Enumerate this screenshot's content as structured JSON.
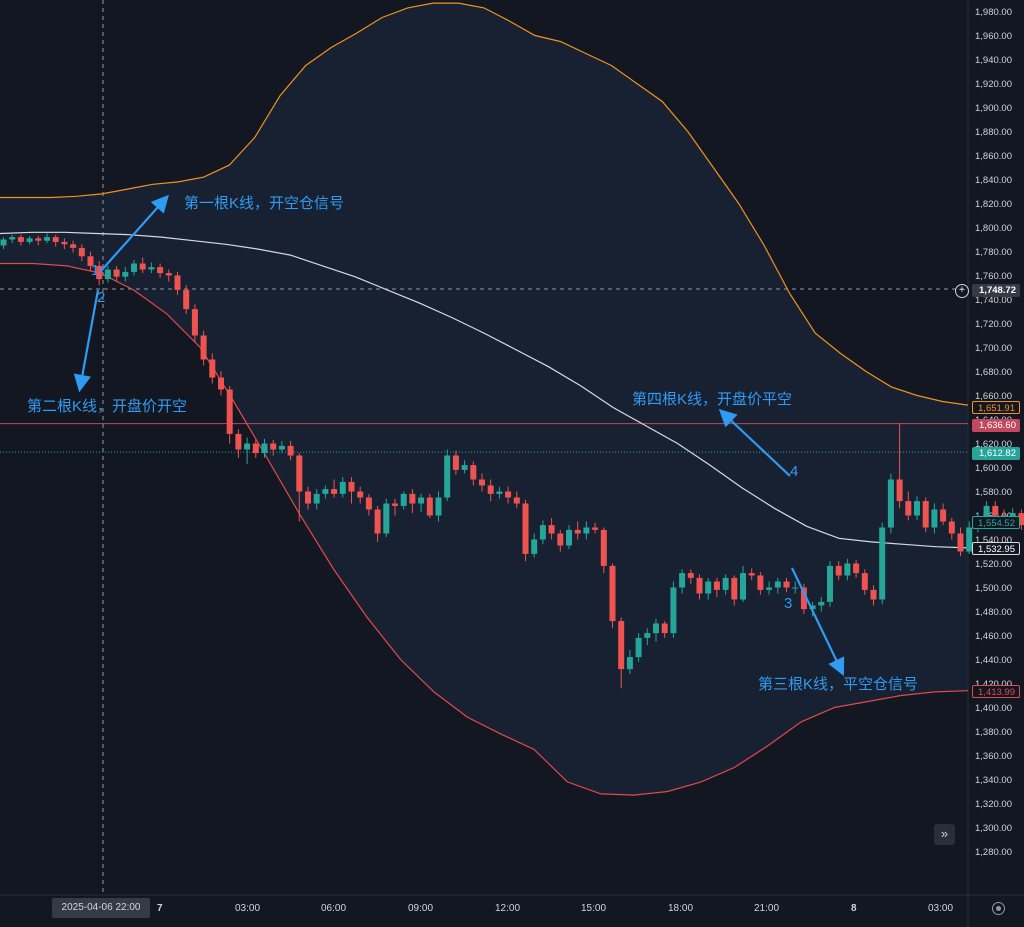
{
  "chart_data": {
    "type": "candlestick",
    "y_axis": {
      "range": [
        1265,
        1995
      ],
      "ticks": [
        "1,280.00",
        "1,300.00",
        "1,320.00",
        "1,340.00",
        "1,360.00",
        "1,380.00",
        "1,400.00",
        "1,420.00",
        "1,440.00",
        "1,460.00",
        "1,480.00",
        "1,500.00",
        "1,520.00",
        "1,540.00",
        "1,560.00",
        "1,580.00",
        "1,600.00",
        "1,620.00",
        "1,640.00",
        "1,660.00",
        "1,680.00",
        "1,700.00",
        "1,720.00",
        "1,740.00",
        "1,760.00",
        "1,780.00",
        "1,800.00",
        "1,820.00",
        "1,840.00",
        "1,860.00",
        "1,880.00",
        "1,900.00",
        "1,920.00",
        "1,940.00",
        "1,960.00",
        "1,980.00"
      ]
    },
    "x_axis": {
      "ticks": [
        "7",
        "03:00",
        "06:00",
        "09:00",
        "12:00",
        "15:00",
        "18:00",
        "21:00",
        "8",
        "03:00"
      ],
      "crosshair_label": "2025-04-06   22:00"
    },
    "price_labels": {
      "crosshair": "1,748.72",
      "upper_band": "1,651.91",
      "red_line": "1,636.60",
      "last_price": "1,612.82",
      "current": "1,554.52",
      "middle_band": "1,532.95",
      "lower_band": "1,413.99"
    },
    "levels": {
      "crosshair": 1748.72,
      "red_line": 1636.6,
      "last_price": 1612.82
    },
    "series": [
      {
        "role": "upper-band",
        "values": [
          1825,
          1825,
          1825,
          1826,
          1828,
          1832,
          1836,
          1838,
          1842,
          1852,
          1875,
          1910,
          1935,
          1950,
          1962,
          1975,
          1983,
          1987,
          1987,
          1983,
          1972,
          1960,
          1955,
          1945,
          1935,
          1920,
          1905,
          1880,
          1850,
          1820,
          1785,
          1745,
          1712,
          1695,
          1680,
          1667,
          1660,
          1655,
          1652
        ]
      },
      {
        "role": "middle-band",
        "values": [
          1795,
          1796,
          1796,
          1795,
          1794,
          1792,
          1789,
          1786,
          1782,
          1777,
          1768,
          1759,
          1748,
          1737,
          1725,
          1712,
          1698,
          1684,
          1668,
          1650,
          1635,
          1620,
          1602,
          1583,
          1566,
          1551,
          1541,
          1538,
          1536,
          1534,
          1533
        ]
      },
      {
        "role": "lower-band",
        "values": [
          1770,
          1770,
          1768,
          1762,
          1748,
          1728,
          1700,
          1655,
          1608,
          1560,
          1515,
          1475,
          1440,
          1413,
          1392,
          1378,
          1365,
          1338,
          1328,
          1327,
          1330,
          1338,
          1350,
          1368,
          1388,
          1400,
          1405,
          1410,
          1413,
          1414
        ]
      },
      {
        "role": "candles",
        "points": [
          [
            1785,
            1790,
            1782,
            1792
          ],
          [
            1790,
            1792,
            1787,
            1794
          ],
          [
            1792,
            1788,
            1785,
            1794
          ],
          [
            1788,
            1791,
            1786,
            1793
          ],
          [
            1791,
            1789,
            1785,
            1793
          ],
          [
            1789,
            1792,
            1787,
            1795
          ],
          [
            1792,
            1788,
            1784,
            1794
          ],
          [
            1788,
            1786,
            1782,
            1791
          ],
          [
            1786,
            1783,
            1779,
            1789
          ],
          [
            1783,
            1776,
            1772,
            1786
          ],
          [
            1776,
            1768,
            1764,
            1780
          ],
          [
            1768,
            1757,
            1752,
            1772
          ],
          [
            1757,
            1765,
            1754,
            1768
          ],
          [
            1765,
            1759,
            1755,
            1768
          ],
          [
            1759,
            1763,
            1755,
            1767
          ],
          [
            1763,
            1770,
            1760,
            1773
          ],
          [
            1770,
            1765,
            1762,
            1775
          ],
          [
            1765,
            1767,
            1762,
            1771
          ],
          [
            1767,
            1762,
            1758,
            1770
          ],
          [
            1762,
            1760,
            1755,
            1765
          ],
          [
            1760,
            1748,
            1744,
            1763
          ],
          [
            1748,
            1732,
            1728,
            1752
          ],
          [
            1732,
            1710,
            1705,
            1736
          ],
          [
            1710,
            1690,
            1685,
            1714
          ],
          [
            1690,
            1675,
            1670,
            1695
          ],
          [
            1675,
            1665,
            1660,
            1680
          ],
          [
            1665,
            1628,
            1620,
            1668
          ],
          [
            1628,
            1615,
            1608,
            1632
          ],
          [
            1615,
            1620,
            1603,
            1625
          ],
          [
            1620,
            1612,
            1608,
            1624
          ],
          [
            1612,
            1620,
            1608,
            1624
          ],
          [
            1620,
            1615,
            1610,
            1623
          ],
          [
            1615,
            1618,
            1612,
            1622
          ],
          [
            1618,
            1610,
            1606,
            1622
          ],
          [
            1610,
            1580,
            1555,
            1612
          ],
          [
            1580,
            1570,
            1565,
            1584
          ],
          [
            1570,
            1578,
            1565,
            1582
          ],
          [
            1578,
            1582,
            1574,
            1585
          ],
          [
            1582,
            1578,
            1575,
            1590
          ],
          [
            1578,
            1588,
            1575,
            1592
          ],
          [
            1588,
            1580,
            1570,
            1592
          ],
          [
            1580,
            1575,
            1570,
            1584
          ],
          [
            1575,
            1565,
            1560,
            1578
          ],
          [
            1565,
            1545,
            1538,
            1568
          ],
          [
            1545,
            1570,
            1542,
            1574
          ],
          [
            1570,
            1568,
            1560,
            1574
          ],
          [
            1568,
            1578,
            1565,
            1580
          ],
          [
            1578,
            1570,
            1562,
            1582
          ],
          [
            1570,
            1575,
            1563,
            1578
          ],
          [
            1575,
            1560,
            1558,
            1578
          ],
          [
            1560,
            1575,
            1555,
            1580
          ],
          [
            1575,
            1610,
            1572,
            1615
          ],
          [
            1610,
            1598,
            1594,
            1614
          ],
          [
            1598,
            1602,
            1595,
            1606
          ],
          [
            1602,
            1590,
            1585,
            1605
          ],
          [
            1590,
            1585,
            1580,
            1595
          ],
          [
            1585,
            1578,
            1572,
            1590
          ],
          [
            1578,
            1580,
            1574,
            1584
          ],
          [
            1580,
            1575,
            1570,
            1584
          ],
          [
            1575,
            1570,
            1566,
            1580
          ],
          [
            1570,
            1528,
            1522,
            1573
          ],
          [
            1528,
            1540,
            1525,
            1545
          ],
          [
            1540,
            1552,
            1536,
            1556
          ],
          [
            1552,
            1545,
            1540,
            1558
          ],
          [
            1545,
            1535,
            1530,
            1548
          ],
          [
            1535,
            1548,
            1532,
            1552
          ],
          [
            1548,
            1545,
            1540,
            1555
          ],
          [
            1545,
            1550,
            1540,
            1555
          ],
          [
            1550,
            1548,
            1545,
            1554
          ],
          [
            1548,
            1518,
            1512,
            1550
          ],
          [
            1518,
            1472,
            1466,
            1520
          ],
          [
            1472,
            1432,
            1416,
            1475
          ],
          [
            1432,
            1442,
            1428,
            1448
          ],
          [
            1442,
            1458,
            1438,
            1462
          ],
          [
            1458,
            1462,
            1452,
            1466
          ],
          [
            1462,
            1470,
            1455,
            1474
          ],
          [
            1470,
            1462,
            1458,
            1472
          ],
          [
            1462,
            1500,
            1458,
            1505
          ],
          [
            1500,
            1512,
            1495,
            1515
          ],
          [
            1512,
            1508,
            1503,
            1515
          ],
          [
            1508,
            1495,
            1490,
            1511
          ],
          [
            1495,
            1505,
            1490,
            1508
          ],
          [
            1505,
            1498,
            1492,
            1508
          ],
          [
            1498,
            1508,
            1494,
            1511
          ],
          [
            1508,
            1490,
            1485,
            1510
          ],
          [
            1490,
            1512,
            1488,
            1518
          ],
          [
            1512,
            1510,
            1506,
            1516
          ],
          [
            1510,
            1498,
            1494,
            1513
          ],
          [
            1498,
            1500,
            1494,
            1505
          ],
          [
            1500,
            1505,
            1495,
            1508
          ],
          [
            1505,
            1500,
            1496,
            1508
          ],
          [
            1500,
            1500,
            1495,
            1505
          ],
          [
            1500,
            1482,
            1478,
            1503
          ],
          [
            1482,
            1485,
            1476,
            1488
          ],
          [
            1485,
            1488,
            1480,
            1492
          ],
          [
            1488,
            1518,
            1484,
            1522
          ],
          [
            1518,
            1510,
            1506,
            1522
          ],
          [
            1510,
            1520,
            1506,
            1524
          ],
          [
            1520,
            1512,
            1508,
            1523
          ],
          [
            1512,
            1498,
            1494,
            1515
          ],
          [
            1498,
            1490,
            1485,
            1502
          ],
          [
            1490,
            1550,
            1486,
            1554
          ],
          [
            1550,
            1590,
            1545,
            1595
          ],
          [
            1590,
            1572,
            1566,
            1637
          ],
          [
            1572,
            1560,
            1556,
            1580
          ],
          [
            1560,
            1572,
            1556,
            1576
          ],
          [
            1572,
            1550,
            1546,
            1575
          ],
          [
            1550,
            1565,
            1545,
            1570
          ],
          [
            1565,
            1555,
            1552,
            1570
          ],
          [
            1555,
            1545,
            1540,
            1558
          ],
          [
            1545,
            1530,
            1526,
            1550
          ],
          [
            1530,
            1550,
            1528,
            1555
          ],
          [
            1550,
            1558,
            1546,
            1562
          ],
          [
            1558,
            1568,
            1552,
            1572
          ],
          [
            1568,
            1560,
            1556,
            1572
          ],
          [
            1560,
            1555,
            1550,
            1565
          ],
          [
            1555,
            1562,
            1550,
            1566
          ],
          [
            1562,
            1552,
            1548,
            1565
          ],
          [
            1552,
            1548,
            1544,
            1556
          ],
          [
            1548,
            1555,
            1545,
            1558
          ],
          [
            1555,
            1552,
            1548,
            1560
          ],
          [
            1552,
            1554,
            1548,
            1558
          ]
        ]
      }
    ],
    "annotations": [
      {
        "text": "第一根K线，开空仓信号"
      },
      {
        "text": "第二根K线，开盘价开空"
      },
      {
        "text": "第四根K线，开盘价平空"
      },
      {
        "text": "第三根K线，平空仓信号"
      }
    ],
    "markers": [
      "1",
      "2",
      "3",
      "4"
    ]
  },
  "colors": {
    "background": "#131722",
    "up": "#26a69a",
    "down": "#ef5350",
    "upper_band": "#f0931a",
    "middle_band": "#d8dae0",
    "lower_band": "#e04a4a",
    "annotation": "#2f9bf2"
  }
}
